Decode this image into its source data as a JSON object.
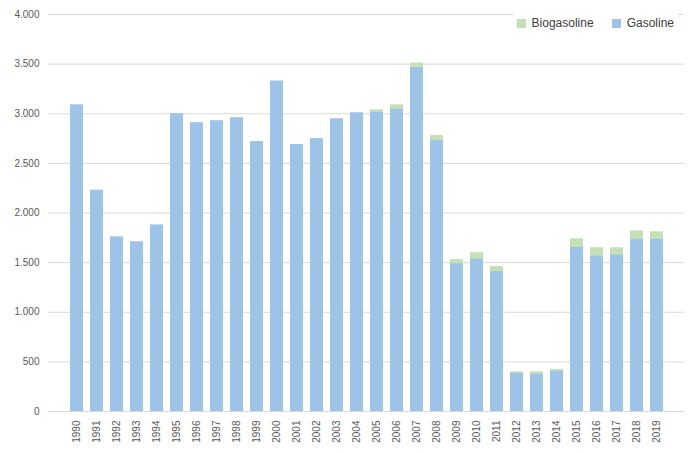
{
  "chart_data": {
    "type": "bar",
    "stacked": true,
    "grid": true,
    "legend": "top-right",
    "categories": [
      "1990",
      "1991",
      "1992",
      "1993",
      "1994",
      "1995",
      "1996",
      "1997",
      "1998",
      "1999",
      "2000",
      "2001",
      "2002",
      "2003",
      "2004",
      "2005",
      "2006",
      "2007",
      "2008",
      "2009",
      "2010",
      "2011",
      "2012",
      "2013",
      "2014",
      "2015",
      "2016",
      "2017",
      "2018",
      "2019"
    ],
    "series": [
      {
        "name": "Gasoline",
        "color": "#9dc3e6",
        "values": [
          3090,
          2230,
          1760,
          1710,
          1880,
          3000,
          2910,
          2930,
          2960,
          2720,
          3330,
          2690,
          2750,
          2950,
          3010,
          3020,
          3050,
          3470,
          2730,
          1490,
          1540,
          1410,
          390,
          380,
          410,
          1660,
          1570,
          1580,
          1740,
          1740
        ]
      },
      {
        "name": "Biogasoline",
        "color": "#c5e0b4",
        "values": [
          0,
          0,
          0,
          0,
          0,
          0,
          0,
          0,
          0,
          0,
          0,
          0,
          0,
          0,
          0,
          20,
          40,
          40,
          50,
          40,
          60,
          50,
          10,
          20,
          15,
          80,
          80,
          70,
          80,
          70
        ]
      }
    ],
    "ylim": [
      0,
      4000
    ],
    "yticks": [
      0,
      500,
      {
        "value": 1000,
        "label": "1.000"
      },
      {
        "value": 1500,
        "label": "1.500"
      },
      {
        "value": 2000,
        "label": "2.000"
      },
      {
        "value": 2500,
        "label": "2.500"
      },
      {
        "value": 3000,
        "label": "3.000"
      },
      {
        "value": 3500,
        "label": "3.500"
      },
      {
        "value": 4000,
        "label": "4.000"
      }
    ]
  }
}
